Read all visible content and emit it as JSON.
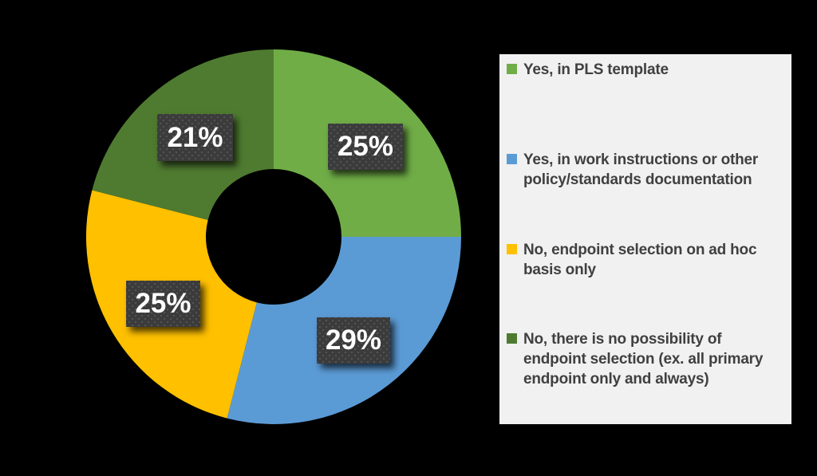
{
  "background_color": "#000000",
  "chart_data": {
    "type": "pie",
    "subtype": "donut",
    "title": "",
    "hole_ratio": 0.36,
    "start_angle_deg": 0,
    "direction": "clockwise",
    "legend_position": "right",
    "grid": false,
    "categories": [
      "Yes, in PLS template",
      "Yes, in work instructions or other policy/standards documentation",
      "No, endpoint selection on ad hoc basis only",
      "No, there is no possibility of endpoint selection (ex. all primary endpoint only and always)"
    ],
    "values": [
      25,
      29,
      25,
      21
    ],
    "slices": [
      {
        "label": "Yes, in PLS template",
        "value": 25,
        "pct_label": "25%",
        "color": "#70AD47"
      },
      {
        "label": "Yes, in work instructions or other policy/standards documentation",
        "value": 29,
        "pct_label": "29%",
        "color": "#5B9BD5"
      },
      {
        "label": "No, endpoint selection on ad hoc basis only",
        "value": 25,
        "pct_label": "25%",
        "color": "#FFC000"
      },
      {
        "label": "No, there is no possibility of endpoint selection (ex. all primary endpoint only and always)",
        "value": 21,
        "pct_label": "21%",
        "color": "#4F7B30"
      }
    ],
    "data_label_style": {
      "box_color": "#3B3B3B",
      "dot_color": "#545454",
      "text_color": "#FFFFFF"
    },
    "legend_style": {
      "background_color": "#F1F1F1",
      "text_color": "#404040"
    }
  }
}
